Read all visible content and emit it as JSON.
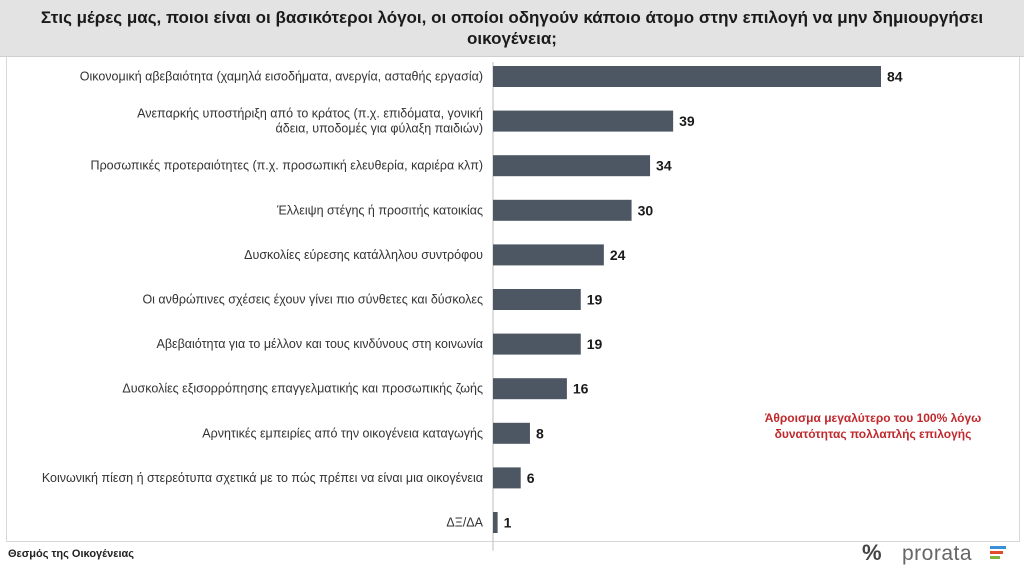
{
  "header": {
    "title": "Στις μέρες μας, ποιοι είναι οι βασικότεροι λόγοι, οι οποίοι οδηγούν κάποιο άτομο στην επιλογή να μην δημιουργήσει οικογένεια;"
  },
  "note": "Άθροισμα μεγαλύτερο του 100% λόγω δυνατότητας πολλαπλής επιλογής",
  "footer": {
    "source": "Θεσμός της Οικογένειας",
    "brand": "prorata",
    "brand_symbol": "%"
  },
  "colors": {
    "bar": "#4d5663",
    "note": "#c0282c",
    "brand_bars": [
      "#3a8fd6",
      "#e2492f",
      "#7cb342",
      "#555555"
    ]
  },
  "chart_data": {
    "type": "bar",
    "orientation": "horizontal",
    "title": "Στις μέρες μας, ποιοι είναι οι βασικότεροι λόγοι, οι οποίοι οδηγούν κάποιο άτομο στην επιλογή να μην δημιουργήσει οικογένεια;",
    "categories": [
      [
        "Οικονομική αβεβαιότητα (χαμηλά εισοδήματα, ανεργία, ασταθής εργασία)"
      ],
      [
        "Ανεπαρκής υποστήριξη από το κράτος (π.χ. επιδόματα, γονική",
        "άδεια, υποδομές για φύλαξη παιδιών)"
      ],
      [
        "Προσωπικές προτεραιότητες (π.χ. προσωπική ελευθερία, καριέρα κλπ)"
      ],
      [
        "Έλλειψη στέγης ή προσιτής κατοικίας"
      ],
      [
        "Δυσκολίες εύρεσης κατάλληλου συντρόφου"
      ],
      [
        "Οι ανθρώπινες σχέσεις έχουν γίνει πιο σύνθετες και δύσκολες"
      ],
      [
        "Αβεβαιότητα για το μέλλον και τους κινδύνους στη κοινωνία"
      ],
      [
        "Δυσκολίες εξισορρόπησης επαγγελματικής και προσωπικής ζωής"
      ],
      [
        "Αρνητικές εμπειρίες από την οικογένεια καταγωγής"
      ],
      [
        "Κοινωνική πίεση ή στερεότυπα σχετικά με το πώς πρέπει να είναι μια οικογένεια"
      ],
      [
        "ΔΞ/ΔΑ"
      ]
    ],
    "values": [
      84,
      39,
      34,
      30,
      24,
      19,
      19,
      16,
      8,
      6,
      1
    ],
    "xlim": [
      0,
      84
    ],
    "grid": false,
    "legend": "none"
  }
}
